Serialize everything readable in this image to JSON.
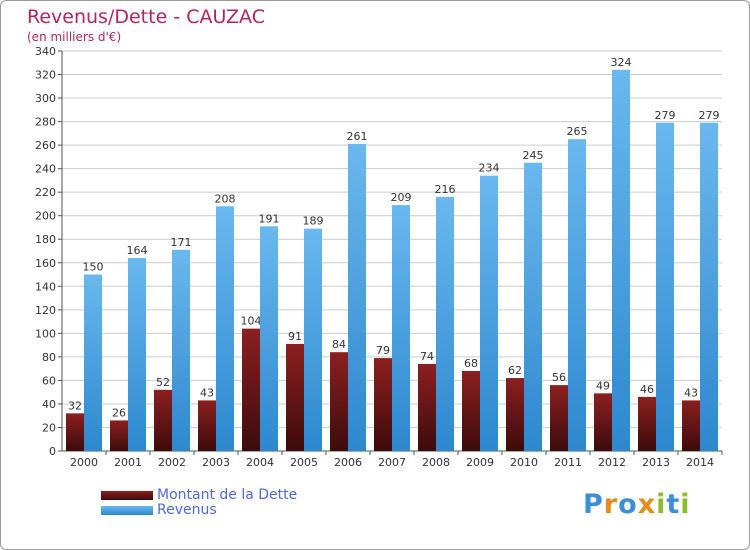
{
  "colors": {
    "title": "#b5245e",
    "legend_text": "#4e68e0",
    "debt_top": "#8b2020",
    "debt_bottom": "#3d0b0b",
    "revenue_top": "#6ab8ee",
    "revenue_bottom": "#2d88cf",
    "grid": "#cccccc"
  },
  "logo": {
    "letters": [
      "P",
      "r",
      "o",
      "x",
      "i",
      "t",
      "i"
    ],
    "colors": [
      "#3a8fd8",
      "#e48b1e",
      "#3a8fd8",
      "#e48b1e",
      "#8dbd2c",
      "#3a8fd8",
      "#8dbd2c"
    ]
  },
  "chart_data": {
    "type": "bar",
    "title": "Revenus/Dette - CAUZAC",
    "subtitle": "(en milliers d'€)",
    "xlabel": "",
    "ylabel": "",
    "ylim": [
      0,
      340
    ],
    "ytick_step": 20,
    "grid": true,
    "legend_position": "bottom-left",
    "categories": [
      "2000",
      "2001",
      "2002",
      "2003",
      "2004",
      "2005",
      "2006",
      "2007",
      "2008",
      "2009",
      "2010",
      "2011",
      "2012",
      "2013",
      "2014"
    ],
    "series": [
      {
        "name": "Montant de la Dette",
        "values": [
          32,
          26,
          52,
          43,
          104,
          91,
          84,
          79,
          74,
          68,
          62,
          56,
          49,
          46,
          43
        ]
      },
      {
        "name": "Revenus",
        "values": [
          150,
          164,
          171,
          208,
          191,
          189,
          261,
          209,
          216,
          234,
          245,
          265,
          324,
          279,
          279
        ]
      }
    ]
  }
}
